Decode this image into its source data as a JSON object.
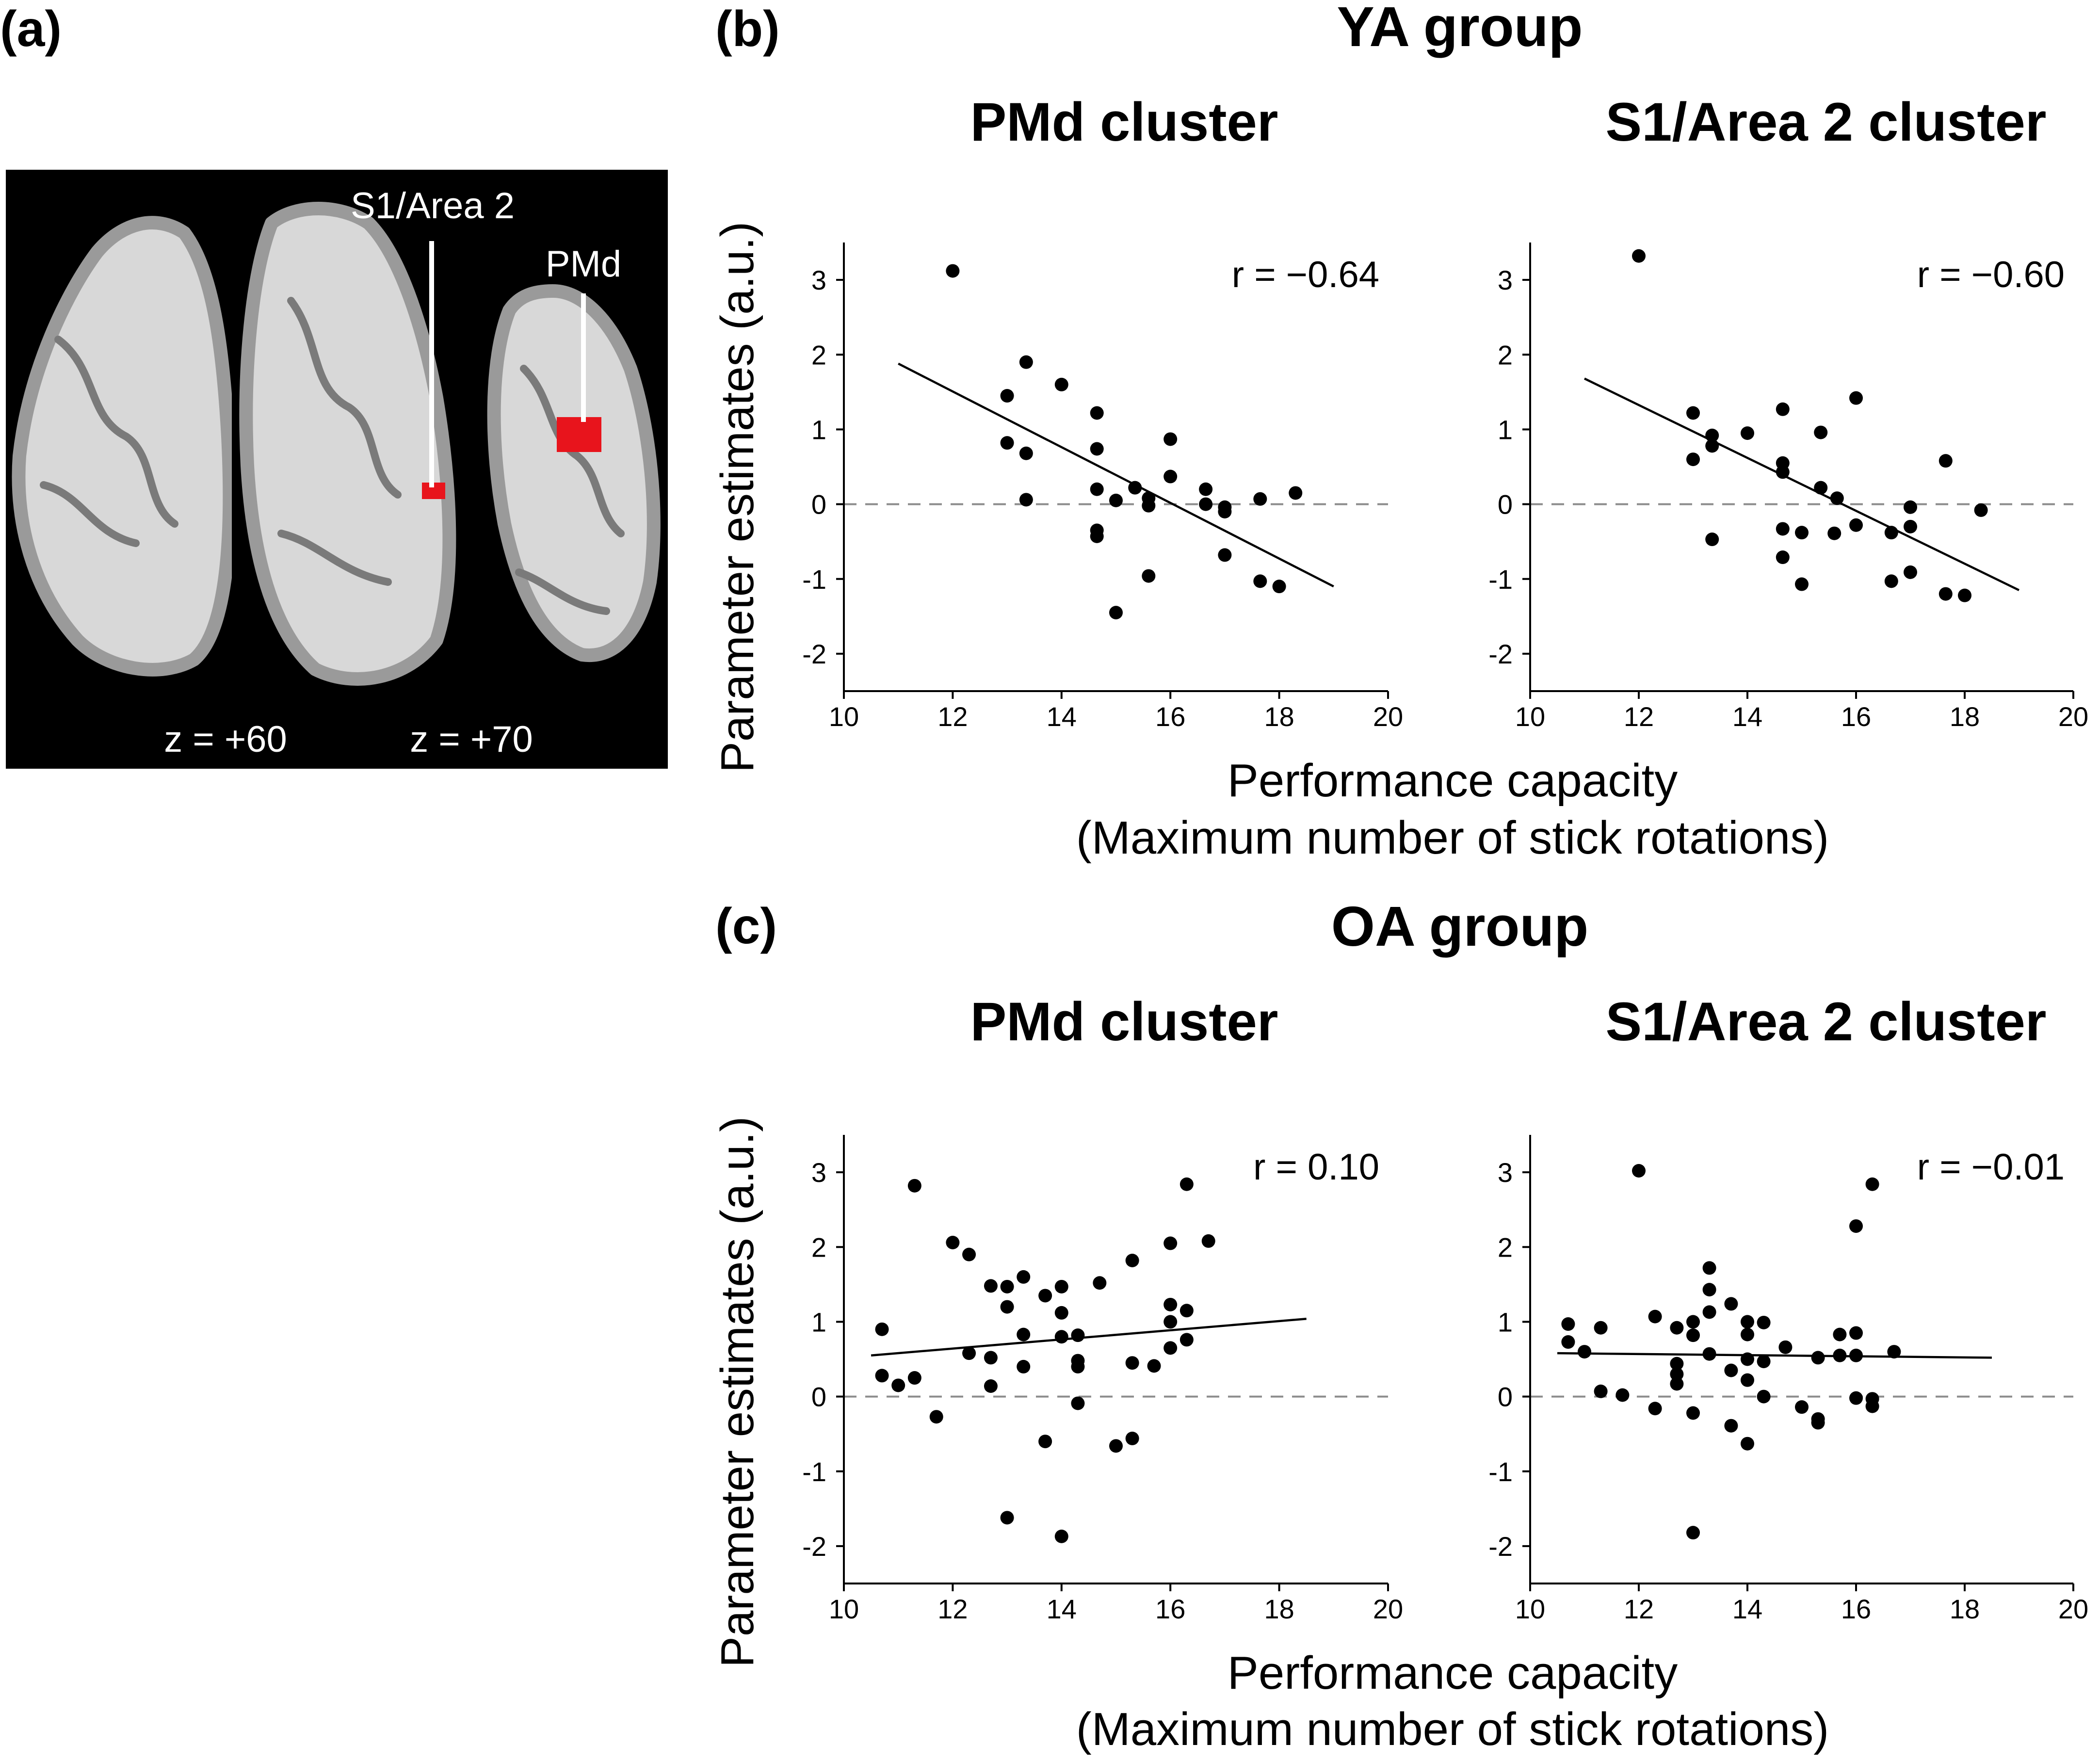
{
  "panels": {
    "a": "(a)",
    "b": "(b)",
    "c": "(c)"
  },
  "brain": {
    "label_s1": "S1/Area 2",
    "label_pmd": "PMd",
    "z_left": "z = +60",
    "z_right": "z = +70",
    "highlight_color": "#e8141c"
  },
  "colors": {
    "points": "#000000",
    "fit_line": "#000000",
    "zero_line": "#8c8c8c"
  },
  "groups": {
    "ya": {
      "title": "YA group"
    },
    "oa": {
      "title": "OA group"
    }
  },
  "shared_axes": {
    "xlabel_line1": "Performance capacity",
    "xlabel_line2": "(Maximum number of stick rotations)",
    "ylabel": "Parameter estimates (a.u.)"
  },
  "chart_data": [
    {
      "type": "scatter",
      "group": "YA group",
      "title": "PMd cluster",
      "r_label": "r = −0.64",
      "xlabel": "Performance capacity (Maximum number of stick rotations)",
      "ylabel": "Parameter estimates (a.u.)",
      "xlim": [
        10,
        20
      ],
      "ylim": [
        -2.5,
        3.5
      ],
      "xticks": [
        10,
        12,
        14,
        16,
        18,
        20
      ],
      "yticks": [
        3,
        2,
        1,
        0,
        -1,
        -2
      ],
      "ytick_labels": [
        "3",
        "2",
        "1",
        "0",
        "-1",
        "-2"
      ],
      "fit_line": [
        [
          11,
          1.88
        ],
        [
          19,
          -1.1
        ]
      ],
      "points": [
        [
          12,
          3.12
        ],
        [
          13.35,
          1.9
        ],
        [
          14,
          1.6
        ],
        [
          13,
          1.45
        ],
        [
          14.65,
          1.22
        ],
        [
          13,
          0.82
        ],
        [
          13.35,
          0.68
        ],
        [
          14.65,
          0.74
        ],
        [
          13.35,
          0.06
        ],
        [
          16,
          0.87
        ],
        [
          16,
          0.37
        ],
        [
          15.35,
          0.22
        ],
        [
          15,
          0.05
        ],
        [
          15.6,
          0.08
        ],
        [
          15.6,
          -0.02
        ],
        [
          14.65,
          0.2
        ],
        [
          14.65,
          -0.35
        ],
        [
          14.65,
          -0.43
        ],
        [
          16.65,
          0.2
        ],
        [
          16.65,
          0.0
        ],
        [
          17,
          -0.04
        ],
        [
          17,
          -0.1
        ],
        [
          17.65,
          0.07
        ],
        [
          18.3,
          0.15
        ],
        [
          17,
          -0.68
        ],
        [
          15.6,
          -0.96
        ],
        [
          17.65,
          -1.03
        ],
        [
          18,
          -1.1
        ],
        [
          15,
          -1.45
        ]
      ]
    },
    {
      "type": "scatter",
      "group": "YA group",
      "title": "S1/Area 2 cluster",
      "r_label": "r = −0.60",
      "xlabel": "Performance capacity (Maximum number of stick rotations)",
      "ylabel": "Parameter estimates (a.u.)",
      "xlim": [
        10,
        20
      ],
      "ylim": [
        -2.5,
        3.5
      ],
      "xticks": [
        10,
        12,
        14,
        16,
        18,
        20
      ],
      "yticks": [
        3,
        2,
        1,
        0,
        -1,
        -2
      ],
      "ytick_labels": [
        "3",
        "2",
        "1",
        "0",
        "-1",
        "-2"
      ],
      "fit_line": [
        [
          11,
          1.68
        ],
        [
          19,
          -1.15
        ]
      ],
      "points": [
        [
          12,
          3.32
        ],
        [
          16,
          1.42
        ],
        [
          14.65,
          1.27
        ],
        [
          13,
          1.22
        ],
        [
          15.35,
          0.96
        ],
        [
          14,
          0.95
        ],
        [
          13.35,
          0.92
        ],
        [
          13.35,
          0.78
        ],
        [
          13,
          0.6
        ],
        [
          14.65,
          0.55
        ],
        [
          14.65,
          0.43
        ],
        [
          15.35,
          0.22
        ],
        [
          15.65,
          0.08
        ],
        [
          17.65,
          0.58
        ],
        [
          18.3,
          -0.08
        ],
        [
          17,
          -0.04
        ],
        [
          17,
          -0.3
        ],
        [
          16.65,
          -0.38
        ],
        [
          16,
          -0.28
        ],
        [
          15.6,
          -0.39
        ],
        [
          15,
          -0.38
        ],
        [
          14.65,
          -0.33
        ],
        [
          13.35,
          -0.47
        ],
        [
          14.65,
          -0.71
        ],
        [
          15,
          -1.07
        ],
        [
          16.65,
          -1.03
        ],
        [
          17,
          -0.91
        ],
        [
          17.65,
          -1.2
        ],
        [
          18,
          -1.22
        ]
      ]
    },
    {
      "type": "scatter",
      "group": "OA group",
      "title": "PMd cluster",
      "r_label": "r = 0.10",
      "xlabel": "Performance capacity (Maximum number of stick rotations)",
      "ylabel": "Parameter estimates (a.u.)",
      "xlim": [
        10,
        20
      ],
      "ylim": [
        -2.5,
        3.5
      ],
      "xticks": [
        10,
        12,
        14,
        16,
        18,
        20
      ],
      "yticks": [
        3,
        2,
        1,
        0,
        -1,
        -2
      ],
      "ytick_labels": [
        "3",
        "2",
        "1",
        "0",
        "-1",
        "-2"
      ],
      "fit_line": [
        [
          10.5,
          0.55
        ],
        [
          18.5,
          1.04
        ]
      ],
      "points": [
        [
          11.3,
          2.82
        ],
        [
          16.3,
          2.84
        ],
        [
          12,
          2.06
        ],
        [
          16.7,
          2.08
        ],
        [
          16,
          2.05
        ],
        [
          12.3,
          1.9
        ],
        [
          15.3,
          1.82
        ],
        [
          13.3,
          1.6
        ],
        [
          12.7,
          1.48
        ],
        [
          13,
          1.47
        ],
        [
          14,
          1.47
        ],
        [
          13.7,
          1.35
        ],
        [
          14.7,
          1.52
        ],
        [
          13,
          1.2
        ],
        [
          14,
          1.12
        ],
        [
          16,
          1.23
        ],
        [
          16.3,
          1.15
        ],
        [
          16,
          1.0
        ],
        [
          10.7,
          0.9
        ],
        [
          13.3,
          0.83
        ],
        [
          14,
          0.8
        ],
        [
          14.3,
          0.82
        ],
        [
          16.3,
          0.76
        ],
        [
          16,
          0.65
        ],
        [
          12.3,
          0.58
        ],
        [
          12.7,
          0.52
        ],
        [
          13.3,
          0.4
        ],
        [
          14.3,
          0.48
        ],
        [
          15.3,
          0.45
        ],
        [
          14.3,
          0.4
        ],
        [
          10.7,
          0.28
        ],
        [
          11.3,
          0.25
        ],
        [
          11,
          0.15
        ],
        [
          12.7,
          0.14
        ],
        [
          15.7,
          0.41
        ],
        [
          11.7,
          -0.27
        ],
        [
          14.3,
          -0.09
        ],
        [
          13.7,
          -0.6
        ],
        [
          15,
          -0.66
        ],
        [
          15.3,
          -0.56
        ],
        [
          13,
          -1.62
        ],
        [
          14,
          -1.87
        ]
      ]
    },
    {
      "type": "scatter",
      "group": "OA group",
      "title": "S1/Area 2 cluster",
      "r_label": "r = −0.01",
      "xlabel": "Performance capacity (Maximum number of stick rotations)",
      "ylabel": "Parameter estimates (a.u.)",
      "xlim": [
        10,
        20
      ],
      "ylim": [
        -2.5,
        3.5
      ],
      "xticks": [
        10,
        12,
        14,
        16,
        18,
        20
      ],
      "yticks": [
        3,
        2,
        1,
        0,
        -1,
        -2
      ],
      "ytick_labels": [
        "3",
        "2",
        "1",
        "0",
        "-1",
        "-2"
      ],
      "fit_line": [
        [
          10.5,
          0.58
        ],
        [
          18.5,
          0.52
        ]
      ],
      "points": [
        [
          12,
          3.02
        ],
        [
          16.3,
          2.84
        ],
        [
          16,
          2.28
        ],
        [
          13.3,
          1.72
        ],
        [
          13.3,
          1.43
        ],
        [
          13.7,
          1.24
        ],
        [
          13.3,
          1.13
        ],
        [
          12.3,
          1.07
        ],
        [
          12.7,
          0.92
        ],
        [
          13,
          1.0
        ],
        [
          14,
          1.0
        ],
        [
          14.3,
          0.99
        ],
        [
          10.7,
          0.97
        ],
        [
          11.3,
          0.92
        ],
        [
          14,
          0.83
        ],
        [
          15.7,
          0.83
        ],
        [
          16,
          0.85
        ],
        [
          10.7,
          0.73
        ],
        [
          11,
          0.6
        ],
        [
          13,
          0.82
        ],
        [
          14.7,
          0.66
        ],
        [
          15.7,
          0.55
        ],
        [
          16,
          0.55
        ],
        [
          16.7,
          0.6
        ],
        [
          12.7,
          0.44
        ],
        [
          13.3,
          0.57
        ],
        [
          14,
          0.5
        ],
        [
          14.3,
          0.47
        ],
        [
          15.3,
          0.52
        ],
        [
          12.7,
          0.3
        ],
        [
          12.7,
          0.17
        ],
        [
          13.7,
          0.35
        ],
        [
          14,
          0.22
        ],
        [
          11.3,
          0.07
        ],
        [
          11.7,
          0.02
        ],
        [
          14.3,
          0.0
        ],
        [
          16,
          -0.02
        ],
        [
          16.3,
          -0.03
        ],
        [
          16.3,
          -0.13
        ],
        [
          12.3,
          -0.16
        ],
        [
          13,
          -0.22
        ],
        [
          15,
          -0.14
        ],
        [
          15.3,
          -0.3
        ],
        [
          15.3,
          -0.35
        ],
        [
          13.7,
          -0.39
        ],
        [
          14,
          -0.63
        ],
        [
          13,
          -1.82
        ]
      ]
    }
  ]
}
